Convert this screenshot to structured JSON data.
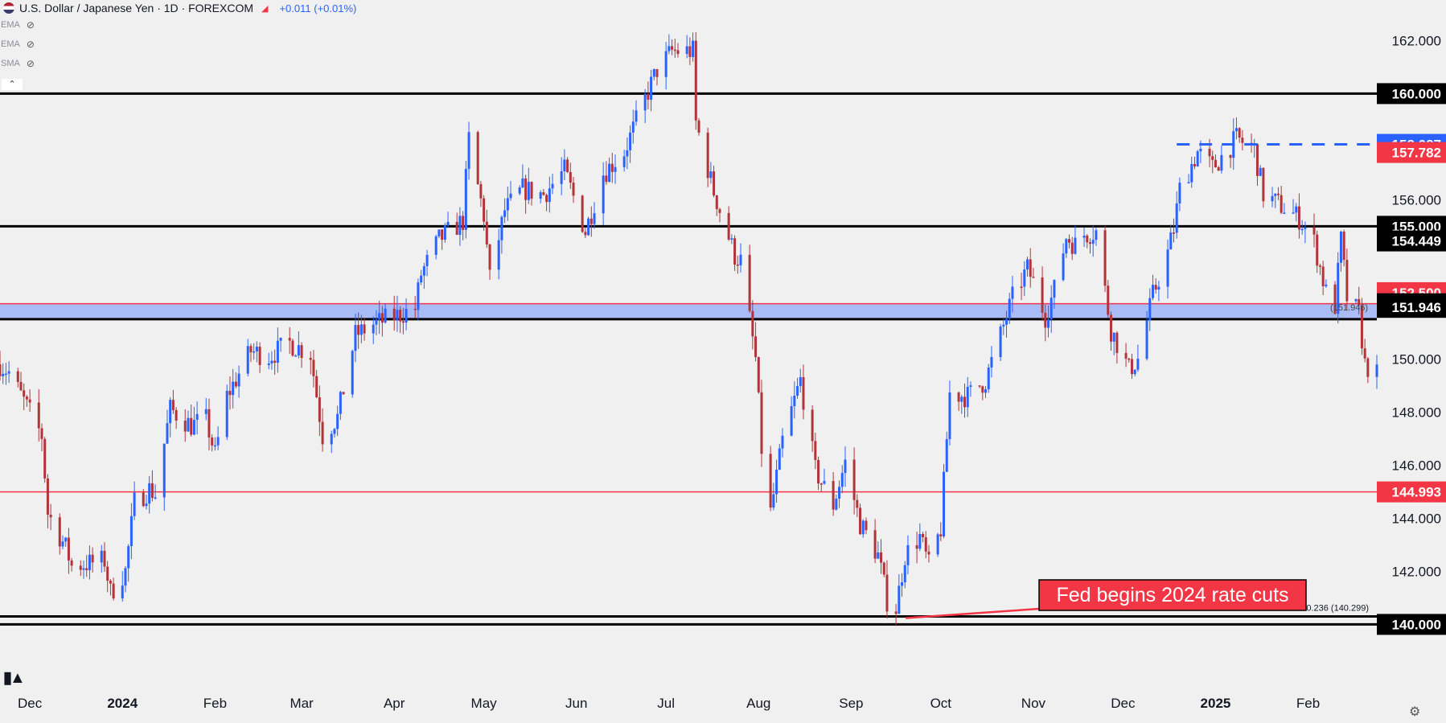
{
  "header": {
    "symbol": "U.S. Dollar / Japanese Yen · 1D · FOREXCOM",
    "change": "+0.011 (+0.01%)"
  },
  "indicators": [
    {
      "label": "EMA",
      "icon": "eye-hidden-icon"
    },
    {
      "label": "EMA",
      "icon": "eye-hidden-icon"
    },
    {
      "label": "SMA",
      "icon": "eye-hidden-icon"
    }
  ],
  "colors": {
    "background": "#f0f0f0",
    "up": "#2962ff",
    "down": "#b2343b",
    "level_line": "#000000",
    "red_line": "#f23645",
    "zone_fill": "#a9bcf5",
    "blue_label": "#2962ff",
    "red_label": "#f23645",
    "black_label": "#000000"
  },
  "chart_data": {
    "type": "candlestick",
    "ylim": [
      138.8,
      162.8
    ],
    "y_ticks": [
      {
        "value": 162,
        "label": "162.000"
      },
      {
        "value": 156,
        "label": "156.000"
      },
      {
        "value": 150,
        "label": "150.000"
      },
      {
        "value": 148,
        "label": "148.000"
      },
      {
        "value": 146,
        "label": "146.000"
      },
      {
        "value": 144,
        "label": "144.000"
      },
      {
        "value": 142,
        "label": "142.000"
      }
    ],
    "x_labels": [
      "Dec",
      "2024",
      "Feb",
      "Mar",
      "Apr",
      "May",
      "Jun",
      "Jul",
      "Aug",
      "Sep",
      "Oct",
      "Nov",
      "Dec",
      "2025",
      "Feb"
    ],
    "x_range": [
      "2023-11-21",
      "2025-02-24"
    ],
    "price_labels": [
      {
        "value": 160.0,
        "label": "160.000",
        "style": "black"
      },
      {
        "value": 158.087,
        "label": "158.087",
        "style": "blue"
      },
      {
        "value": 157.782,
        "label": "157.782",
        "style": "red"
      },
      {
        "value": 155.0,
        "label": "155.000",
        "style": "black"
      },
      {
        "value": 154.449,
        "label": "154.449",
        "style": "black"
      },
      {
        "value": 152.5,
        "label": "152.500",
        "style": "red"
      },
      {
        "value": 152.083,
        "label": "152.083",
        "style": "black"
      },
      {
        "value": 151.946,
        "label": "151.946",
        "style": "black"
      },
      {
        "value": 144.993,
        "label": "144.993",
        "style": "red"
      },
      {
        "value": 140.0,
        "label": "140.000",
        "style": "black"
      }
    ],
    "horizontal_lines": [
      {
        "value": 160.0,
        "style": "black"
      },
      {
        "value": 155.0,
        "style": "black"
      },
      {
        "value": 152.083,
        "style": "red-thin"
      },
      {
        "value": 151.5,
        "style": "black"
      },
      {
        "value": 144.993,
        "style": "red-thin"
      },
      {
        "value": 140.299,
        "style": "black"
      },
      {
        "value": 140.0,
        "style": "black"
      }
    ],
    "zone": {
      "from": 151.5,
      "to": 152.083
    },
    "dashed_line": {
      "value": 158.087,
      "from": "2024-12-19",
      "to": "2025-02-24"
    },
    "annotations": [
      {
        "text": "Fed begins 2024 rate cuts",
        "anchor_date": "2024-09-16",
        "anchor_value": 140.3
      },
      {
        "text": "0.236 (140.299)"
      },
      {
        "text": "(151.946)"
      }
    ],
    "path_points": [
      [
        "2023-11-21",
        149.8
      ],
      [
        "2023-11-24",
        149.5
      ],
      [
        "2023-11-30",
        148.2
      ],
      [
        "2023-12-05",
        147.1
      ],
      [
        "2023-12-07",
        144.2
      ],
      [
        "2023-12-13",
        142.9
      ],
      [
        "2023-12-15",
        142.2
      ],
      [
        "2023-12-21",
        142.3
      ],
      [
        "2023-12-26",
        142.4
      ],
      [
        "2023-12-28",
        141.2
      ],
      [
        "2024-01-02",
        142.0
      ],
      [
        "2024-01-05",
        144.6
      ],
      [
        "2024-01-10",
        145.1
      ],
      [
        "2024-01-12",
        144.9
      ],
      [
        "2024-01-17",
        148.1
      ],
      [
        "2024-01-24",
        147.5
      ],
      [
        "2024-01-29",
        147.7
      ],
      [
        "2024-02-01",
        146.4
      ],
      [
        "2024-02-05",
        148.6
      ],
      [
        "2024-02-13",
        150.3
      ],
      [
        "2024-02-19",
        150.1
      ],
      [
        "2024-02-26",
        150.6
      ],
      [
        "2024-03-04",
        150.2
      ],
      [
        "2024-03-08",
        147.1
      ],
      [
        "2024-03-13",
        147.8
      ],
      [
        "2024-03-19",
        150.9
      ],
      [
        "2024-03-25",
        151.3
      ],
      [
        "2024-04-01",
        151.6
      ],
      [
        "2024-04-08",
        151.9
      ],
      [
        "2024-04-10",
        153.2
      ],
      [
        "2024-04-16",
        154.5
      ],
      [
        "2024-04-24",
        155.2
      ],
      [
        "2024-04-26",
        158.3
      ],
      [
        "2024-04-29",
        156.5
      ],
      [
        "2024-05-01",
        155.4
      ],
      [
        "2024-05-03",
        153.0
      ],
      [
        "2024-05-08",
        155.6
      ],
      [
        "2024-05-14",
        156.4
      ],
      [
        "2024-05-21",
        156.2
      ],
      [
        "2024-05-28",
        157.1
      ],
      [
        "2024-06-04",
        154.8
      ],
      [
        "2024-06-10",
        157.0
      ],
      [
        "2024-06-17",
        157.8
      ],
      [
        "2024-06-24",
        159.8
      ],
      [
        "2024-06-28",
        160.9
      ],
      [
        "2024-07-03",
        161.6
      ],
      [
        "2024-07-10",
        161.6
      ],
      [
        "2024-07-11",
        158.9
      ],
      [
        "2024-07-17",
        156.3
      ],
      [
        "2024-07-24",
        153.9
      ],
      [
        "2024-07-26",
        153.7
      ],
      [
        "2024-07-31",
        150.0
      ],
      [
        "2024-08-02",
        146.6
      ],
      [
        "2024-08-05",
        144.2
      ],
      [
        "2024-08-09",
        146.9
      ],
      [
        "2024-08-15",
        149.2
      ],
      [
        "2024-08-20",
        145.8
      ],
      [
        "2024-08-26",
        144.5
      ],
      [
        "2024-08-30",
        146.1
      ],
      [
        "2024-09-04",
        143.8
      ],
      [
        "2024-09-10",
        142.6
      ],
      [
        "2024-09-13",
        140.9
      ],
      [
        "2024-09-16",
        140.6
      ],
      [
        "2024-09-19",
        142.6
      ],
      [
        "2024-09-24",
        143.3
      ],
      [
        "2024-09-27",
        142.2
      ],
      [
        "2024-10-01",
        143.6
      ],
      [
        "2024-10-04",
        148.7
      ],
      [
        "2024-10-10",
        148.6
      ],
      [
        "2024-10-16",
        149.2
      ],
      [
        "2024-10-21",
        150.9
      ],
      [
        "2024-10-25",
        152.3
      ],
      [
        "2024-10-30",
        153.4
      ],
      [
        "2024-11-01",
        152.9
      ],
      [
        "2024-11-05",
        151.6
      ],
      [
        "2024-11-08",
        152.6
      ],
      [
        "2024-11-12",
        154.6
      ],
      [
        "2024-11-15",
        154.3
      ],
      [
        "2024-11-18",
        154.7
      ],
      [
        "2024-11-22",
        154.8
      ],
      [
        "2024-11-27",
        151.1
      ],
      [
        "2024-12-03",
        149.6
      ],
      [
        "2024-12-06",
        150.0
      ],
      [
        "2024-12-11",
        152.4
      ],
      [
        "2024-12-16",
        154.0
      ],
      [
        "2024-12-18",
        154.9
      ],
      [
        "2024-12-20",
        156.4
      ],
      [
        "2024-12-26",
        157.8
      ],
      [
        "2024-12-31",
        157.2
      ],
      [
        "2025-01-08",
        158.3
      ],
      [
        "2025-01-14",
        157.9
      ],
      [
        "2025-01-17",
        156.2
      ],
      [
        "2025-01-24",
        155.7
      ],
      [
        "2025-01-29",
        155.3
      ],
      [
        "2025-02-03",
        154.4
      ],
      [
        "2025-02-07",
        152.5
      ],
      [
        "2025-02-10",
        152.0
      ],
      [
        "2025-02-12",
        154.5
      ],
      [
        "2025-02-14",
        152.3
      ],
      [
        "2025-02-18",
        151.7
      ],
      [
        "2025-02-20",
        149.8
      ],
      [
        "2025-02-24",
        149.4
      ]
    ]
  }
}
